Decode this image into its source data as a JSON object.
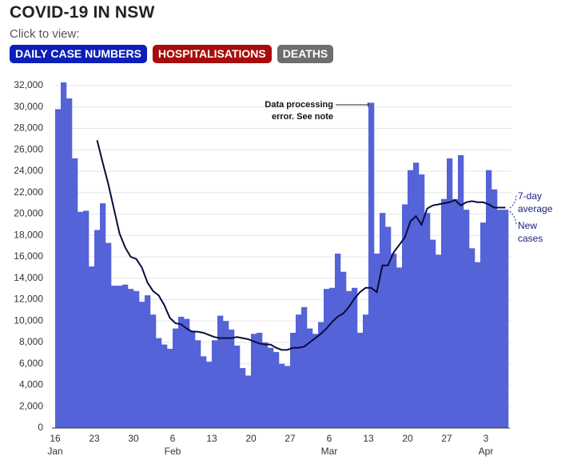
{
  "header": {
    "title": "COVID-19 IN NSW",
    "subtitle": "Click to view:",
    "buttons": [
      {
        "label": "DAILY CASE NUMBERS",
        "color": "#0d1fb8"
      },
      {
        "label": "HOSPITALISATIONS",
        "color": "#a80c0c"
      },
      {
        "label": "DEATHS",
        "color": "#6e6e6e"
      }
    ]
  },
  "chart_data": {
    "type": "bar",
    "categories": [
      "16",
      null,
      null,
      null,
      null,
      null,
      null,
      "23",
      null,
      null,
      null,
      null,
      null,
      null,
      "30",
      null,
      null,
      null,
      null,
      null,
      null,
      "6",
      null,
      null,
      null,
      null,
      null,
      null,
      "13",
      null,
      null,
      null,
      null,
      null,
      null,
      "20",
      null,
      null,
      null,
      null,
      null,
      null,
      "27",
      null,
      null,
      null,
      null,
      null,
      null,
      "6",
      null,
      null,
      null,
      null,
      null,
      null,
      "13",
      null,
      null,
      null,
      null,
      null,
      null,
      "20",
      null,
      null,
      null,
      null,
      null,
      null,
      "27",
      null,
      null,
      null,
      null,
      null,
      null,
      "3",
      null,
      null,
      null
    ],
    "months": [
      "Jan",
      null,
      null,
      null,
      null,
      null,
      null,
      null,
      null,
      null,
      null,
      null,
      null,
      null,
      null,
      null,
      null,
      null,
      null,
      null,
      null,
      "Feb",
      null,
      null,
      null,
      null,
      null,
      null,
      null,
      null,
      null,
      null,
      null,
      null,
      null,
      null,
      null,
      null,
      null,
      null,
      null,
      null,
      null,
      null,
      null,
      null,
      null,
      null,
      null,
      "Mar",
      null,
      null,
      null,
      null,
      null,
      null,
      null,
      null,
      null,
      null,
      null,
      null,
      null,
      null,
      null,
      null,
      null,
      null,
      null,
      null,
      null,
      null,
      null,
      null,
      null,
      null,
      null,
      "Apr",
      null,
      null,
      null
    ],
    "series": [
      {
        "name": "New cases",
        "color": "#5563d8",
        "values": [
          29800,
          32300,
          30800,
          25200,
          20200,
          20300,
          15100,
          18500,
          21000,
          17300,
          13300,
          13300,
          13400,
          13000,
          12800,
          11800,
          12400,
          10600,
          8400,
          7800,
          7400,
          9300,
          10400,
          10200,
          9100,
          8200,
          6700,
          6200,
          8200,
          10500,
          10000,
          9200,
          7700,
          5600,
          4900,
          8800,
          8900,
          8000,
          7500,
          7100,
          6000,
          5800,
          8900,
          10600,
          11300,
          9300,
          8800,
          9900,
          13000,
          13100,
          16300,
          14600,
          12800,
          13100,
          8900,
          10600,
          30400,
          16300,
          20100,
          18800,
          16300,
          15000,
          20900,
          24100,
          24800,
          23700,
          20100,
          17600,
          16200,
          21400,
          25200,
          21400,
          25500,
          20400,
          16800,
          15500,
          19200,
          24100,
          22300,
          20400,
          20400
        ]
      },
      {
        "name": "7-day average",
        "color": "#0b0b3d",
        "values": [
          null,
          null,
          null,
          null,
          null,
          null,
          null,
          26900,
          24800,
          22800,
          20500,
          18200,
          16900,
          16000,
          15800,
          15000,
          13600,
          12800,
          12400,
          11500,
          10300,
          9800,
          9700,
          9300,
          9000,
          9000,
          8900,
          8700,
          8500,
          8400,
          8400,
          8400,
          8500,
          8400,
          8300,
          8100,
          7900,
          7800,
          7800,
          7500,
          7300,
          7300,
          7500,
          7500,
          7600,
          8000,
          8400,
          8800,
          9300,
          9900,
          10400,
          10700,
          11300,
          12100,
          12700,
          13100,
          13100,
          12700,
          15200,
          15200,
          16400,
          17100,
          17800,
          19300,
          19800,
          19000,
          20500,
          20800,
          20900,
          21000,
          21100,
          21300,
          20800,
          21100,
          21200,
          21100,
          21100,
          20900,
          20600,
          20600,
          20600
        ]
      }
    ],
    "series_labels": [
      [
        "New",
        "cases"
      ],
      [
        "7-day",
        "average"
      ]
    ],
    "annotation": [
      "Data processing",
      "error. See note"
    ],
    "ylim": [
      0,
      32000
    ],
    "yticks": [
      0,
      {
        "value": 2000,
        "label": "2,000"
      },
      {
        "value": 4000,
        "label": "4,000"
      },
      {
        "value": 6000,
        "label": "6,000"
      },
      {
        "value": 8000,
        "label": "8,000"
      },
      {
        "value": 10000,
        "label": "10,000"
      },
      {
        "value": 12000,
        "label": "12,000"
      },
      {
        "value": 14000,
        "label": "14,000"
      },
      {
        "value": 16000,
        "label": "16,000"
      },
      {
        "value": 18000,
        "label": "18,000"
      },
      {
        "value": 20000,
        "label": "20,000"
      },
      {
        "value": 22000,
        "label": "22,000"
      },
      {
        "value": 24000,
        "label": "24,000"
      },
      {
        "value": 26000,
        "label": "26,000"
      },
      {
        "value": 28000,
        "label": "28,000"
      },
      {
        "value": 30000,
        "label": "30,000"
      },
      {
        "value": 32000,
        "label": "32,000"
      }
    ],
    "grid": true
  }
}
